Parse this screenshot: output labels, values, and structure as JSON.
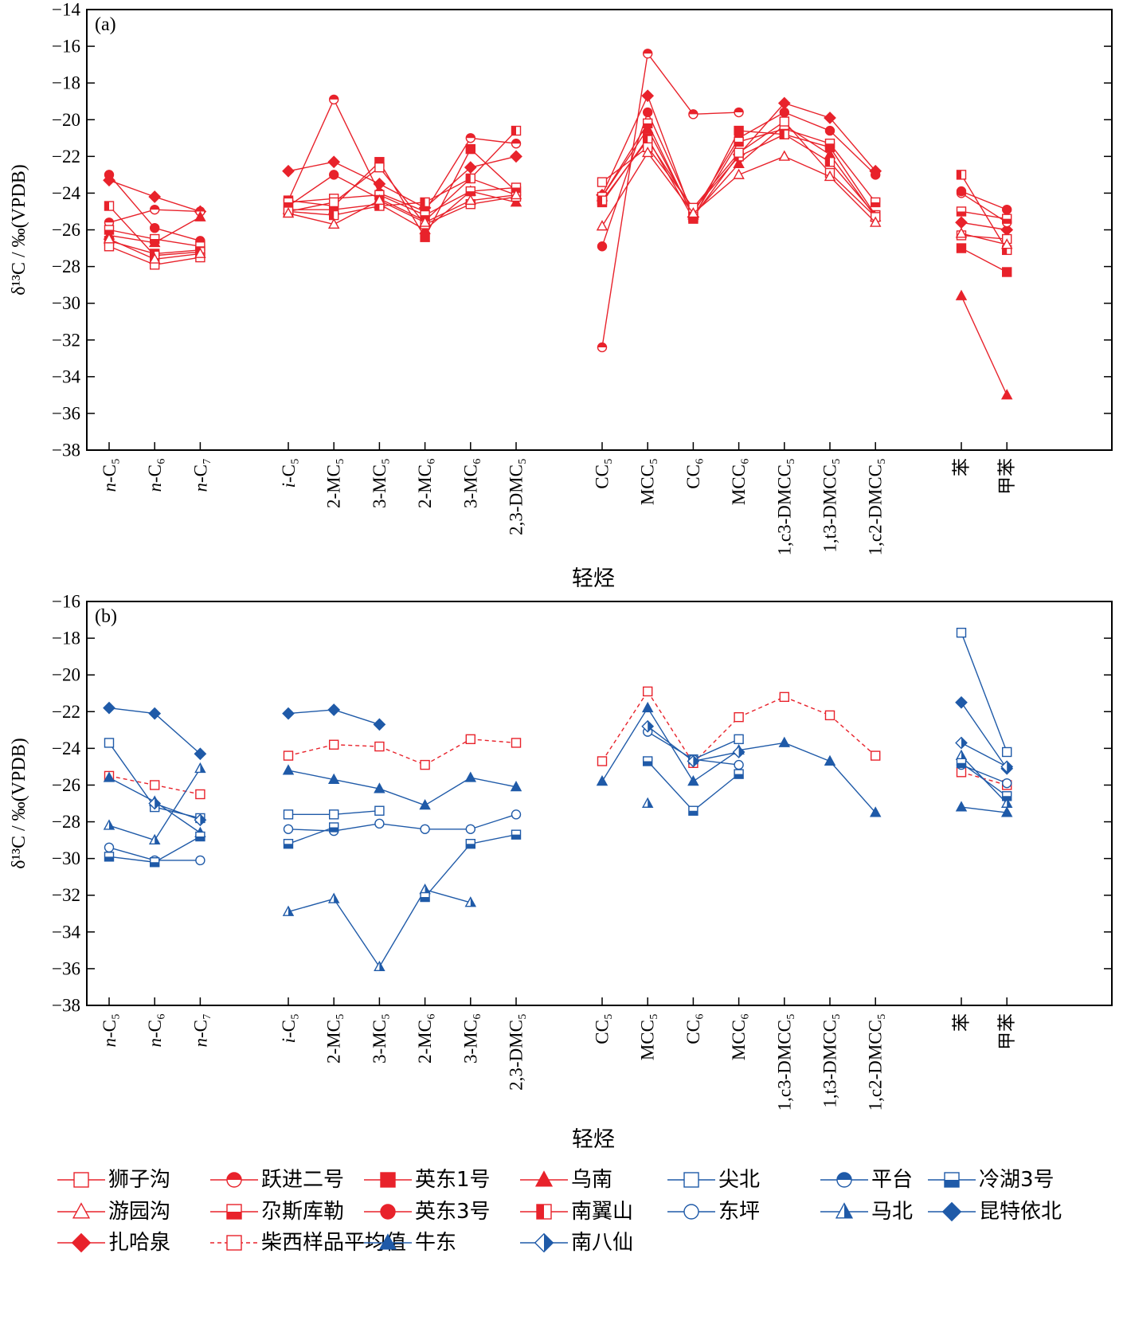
{
  "chart_data": [
    {
      "type": "line",
      "panel_label": "(a)",
      "ylabel": "δ¹³C / ‰(VPDB)",
      "xlabel": "轻烃",
      "ylim": [
        -38,
        -14
      ],
      "yticks": [
        -14,
        -16,
        -18,
        -20,
        -22,
        -24,
        -26,
        -28,
        -30,
        -32,
        -34,
        -36,
        -38
      ],
      "categories": [
        "n-C5",
        "n-C6",
        "n-C7",
        "i-C5",
        "2-MC5",
        "3-MC5",
        "2-MC6",
        "3-MC6",
        "2,3-DMC5",
        "CC5",
        "MCC5",
        "CC6",
        "MCC6",
        "1,c3-DMCC5",
        "1,t3-DMCC5",
        "1,c2-DMCC5",
        "苯",
        "甲苯"
      ],
      "category_labels": [
        "n-C₅",
        "n-C₆",
        "n-C₇",
        "i-C₅",
        "2-MC₅",
        "3-MC₅",
        "2-MC₆",
        "3-MC₆",
        "2,3-DMC₅",
        "CC₅",
        "MCC₅",
        "CC₆",
        "MCC₆",
        "1,c3-DMCC₅",
        "1,t3-DMCC₅",
        "1,c2-DMCC₅",
        "苯",
        "甲苯"
      ],
      "groups": [
        [
          0,
          1,
          2
        ],
        [
          3,
          4,
          5,
          6,
          7,
          8
        ],
        [
          9,
          10,
          11,
          12,
          13,
          14,
          15
        ],
        [
          16,
          17
        ]
      ],
      "series": [
        {
          "name": "扎哈泉",
          "marker": "diamond",
          "fill": "full",
          "values": [
            -23.3,
            -24.2,
            -25.0,
            -22.8,
            -22.3,
            -23.5,
            -24.8,
            -22.6,
            -22.0,
            -24.1,
            -18.7,
            -25.3,
            -21.9,
            -19.1,
            -19.9,
            -22.8,
            -25.6,
            -26.0
          ]
        },
        {
          "name": "跃进二号",
          "marker": "circle",
          "fill": "top",
          "values": [
            -25.6,
            -24.9,
            -25.0,
            -24.4,
            -18.9,
            -24.0,
            -25.0,
            -21.0,
            -21.3,
            -32.4,
            -16.4,
            -19.7,
            -19.6,
            null,
            null,
            null,
            -24.0,
            -25.6
          ]
        },
        {
          "name": "英东3号",
          "marker": "circle",
          "fill": "full",
          "values": [
            -23.0,
            -25.9,
            -26.6,
            -24.7,
            -23.0,
            -24.3,
            -25.5,
            -23.2,
            -24.1,
            -26.9,
            -19.6,
            -25.1,
            -21.0,
            -19.6,
            -20.6,
            -23.0,
            -23.9,
            -24.9
          ]
        },
        {
          "name": "乌南",
          "marker": "triangle",
          "fill": "full",
          "values": [
            -26.3,
            -26.7,
            -25.3,
            -24.9,
            -24.9,
            -24.6,
            -26.0,
            -23.9,
            -24.5,
            -24.2,
            -20.5,
            -25.2,
            -22.4,
            -20.3,
            -21.9,
            -25.3,
            -29.6,
            -35.0
          ]
        },
        {
          "name": "英东1号",
          "marker": "square",
          "fill": "full",
          "values": [
            -26.6,
            -27.3,
            -27.1,
            -24.4,
            -24.7,
            -22.3,
            -26.4,
            -21.6,
            -23.9,
            -24.5,
            -21.0,
            -25.4,
            -20.6,
            -20.8,
            -21.5,
            -25.2,
            -27.0,
            -28.3
          ]
        },
        {
          "name": "尕斯库勒",
          "marker": "square",
          "fill": "bottom",
          "values": [
            -26.0,
            -26.5,
            -26.9,
            -24.5,
            -24.3,
            -24.1,
            -25.2,
            -23.9,
            -23.7,
            -24.2,
            -20.2,
            -25.3,
            -21.2,
            -20.5,
            -21.3,
            -24.5,
            -25.0,
            -25.4
          ]
        },
        {
          "name": "南翼山",
          "marker": "square",
          "fill": "left",
          "values": [
            -24.7,
            -27.4,
            -27.2,
            -25.0,
            -25.2,
            -24.7,
            -24.5,
            -23.2,
            -20.6,
            -24.4,
            -21.1,
            -24.9,
            -22.0,
            -20.8,
            -22.3,
            -25.2,
            -23.0,
            -27.1
          ]
        },
        {
          "name": "狮子沟",
          "marker": "square",
          "fill": "none",
          "values": [
            -26.9,
            -27.9,
            -27.5,
            -25.0,
            -24.5,
            -22.6,
            -25.7,
            -24.6,
            -24.2,
            -23.4,
            -21.5,
            -24.8,
            -21.8,
            -20.1,
            -22.9,
            -25.3,
            -26.3,
            -26.5
          ]
        },
        {
          "name": "游园沟",
          "marker": "triangle",
          "fill": "none",
          "values": [
            -26.5,
            -27.6,
            -27.3,
            -25.1,
            -25.7,
            -24.4,
            -25.6,
            -24.4,
            -24.1,
            -25.8,
            -21.8,
            -25.1,
            -23.0,
            -22.0,
            -23.1,
            -25.6,
            -26.2,
            -26.8
          ]
        }
      ]
    },
    {
      "type": "line",
      "panel_label": "(b)",
      "ylabel": "δ¹³C / ‰(VPDB)",
      "xlabel": "轻烃",
      "ylim": [
        -38,
        -16
      ],
      "yticks": [
        -16,
        -18,
        -20,
        -22,
        -24,
        -26,
        -28,
        -30,
        -32,
        -34,
        -36,
        -38
      ],
      "categories": [
        "n-C5",
        "n-C6",
        "n-C7",
        "i-C5",
        "2-MC5",
        "3-MC5",
        "2-MC6",
        "3-MC6",
        "2,3-DMC5",
        "CC5",
        "MCC5",
        "CC6",
        "MCC6",
        "1,c3-DMCC5",
        "1,t3-DMCC5",
        "1,c2-DMCC5",
        "苯",
        "甲苯"
      ],
      "category_labels": [
        "n-C₅",
        "n-C₆",
        "n-C₇",
        "i-C₅",
        "2-MC₅",
        "3-MC₅",
        "2-MC₆",
        "3-MC₆",
        "2,3-DMC₅",
        "CC₅",
        "MCC₅",
        "CC₆",
        "MCC₆",
        "1,c3-DMCC₅",
        "1,t3-DMCC₅",
        "1,c2-DMCC₅",
        "苯",
        "甲苯"
      ],
      "groups": [
        [
          0,
          1,
          2
        ],
        [
          3,
          4,
          5,
          6,
          7,
          8
        ],
        [
          9,
          10,
          11,
          12,
          13,
          14,
          15
        ],
        [
          16,
          17
        ]
      ],
      "series": [
        {
          "name": "柴西样品平均值",
          "marker": "square",
          "fill": "none",
          "dashed": true,
          "values": [
            -25.5,
            -26.0,
            -26.5,
            -24.4,
            -23.8,
            -23.9,
            -24.9,
            -23.5,
            -23.7,
            -24.7,
            -20.9,
            -24.8,
            -22.3,
            -21.2,
            -22.2,
            -24.4,
            -25.3,
            -26.0
          ]
        },
        {
          "name": "昆特依北",
          "marker": "diamond",
          "fill": "full",
          "values": [
            -21.8,
            -22.1,
            -24.3,
            -22.1,
            -21.9,
            -22.7,
            null,
            null,
            null,
            null,
            null,
            null,
            null,
            null,
            null,
            null,
            -21.5,
            -25.1
          ]
        },
        {
          "name": "尖北",
          "marker": "square",
          "fill": "none",
          "values": [
            -23.7,
            -27.2,
            -27.8,
            -27.6,
            -27.6,
            -27.4,
            null,
            null,
            null,
            null,
            null,
            -24.6,
            -23.5,
            null,
            null,
            null,
            -17.7,
            -24.2
          ]
        },
        {
          "name": "牛东",
          "marker": "triangle",
          "fill": "full",
          "values": [
            -25.6,
            -26.9,
            -28.6,
            -25.2,
            -25.7,
            -26.2,
            -27.1,
            -25.6,
            -26.1,
            -25.8,
            -21.8,
            -25.8,
            -24.1,
            -23.7,
            -24.7,
            -27.5,
            -27.2,
            -27.5
          ]
        },
        {
          "name": "马北",
          "marker": "triangle",
          "fill": "right",
          "values": [
            -28.2,
            -29.0,
            -25.1,
            -32.9,
            -32.2,
            -35.9,
            -31.7,
            -32.4,
            null,
            null,
            -27.0,
            null,
            null,
            null,
            null,
            null,
            -24.4,
            -27.0
          ]
        },
        {
          "name": "东坪",
          "marker": "circle",
          "fill": "none",
          "values": [
            -29.4,
            -30.1,
            -30.1,
            -28.4,
            -28.5,
            -28.1,
            -28.4,
            -28.4,
            -27.6,
            null,
            -23.1,
            -24.6,
            -24.9,
            null,
            null,
            null,
            -24.9,
            -25.9
          ]
        },
        {
          "name": "冷湖3号",
          "marker": "square",
          "fill": "bottom",
          "values": [
            -29.9,
            -30.2,
            -28.8,
            -29.2,
            -28.3,
            null,
            -32.1,
            -29.2,
            -28.7,
            null,
            -24.7,
            -27.4,
            -25.4,
            null,
            null,
            null,
            -24.8,
            -26.6
          ]
        },
        {
          "name": "南八仙",
          "marker": "diamond",
          "fill": "right",
          "values": [
            null,
            -27.0,
            -27.9,
            null,
            null,
            null,
            null,
            null,
            null,
            null,
            -22.8,
            -24.7,
            -24.2,
            null,
            null,
            null,
            -23.7,
            -25.0
          ]
        }
      ]
    }
  ],
  "colors": {
    "red": "#e8222b",
    "blue": "#1f5aa8"
  },
  "legend": [
    {
      "name": "狮子沟",
      "color": "red",
      "marker": "square",
      "fill": "none"
    },
    {
      "name": "跃进二号",
      "color": "red",
      "marker": "circle",
      "fill": "top"
    },
    {
      "name": "英东1号",
      "color": "red",
      "marker": "square",
      "fill": "full"
    },
    {
      "name": "乌南",
      "color": "red",
      "marker": "triangle",
      "fill": "full"
    },
    {
      "name": "尖北",
      "color": "blue",
      "marker": "square",
      "fill": "none"
    },
    {
      "name": "平台",
      "color": "blue",
      "marker": "circle",
      "fill": "top"
    },
    {
      "name": "冷湖3号",
      "color": "blue",
      "marker": "square",
      "fill": "bottom"
    },
    {
      "name": "游园沟",
      "color": "red",
      "marker": "triangle",
      "fill": "none"
    },
    {
      "name": "尕斯库勒",
      "color": "red",
      "marker": "square",
      "fill": "bottom"
    },
    {
      "name": "英东3号",
      "color": "red",
      "marker": "circle",
      "fill": "full"
    },
    {
      "name": "南翼山",
      "color": "red",
      "marker": "square",
      "fill": "left"
    },
    {
      "name": "东坪",
      "color": "blue",
      "marker": "circle",
      "fill": "none"
    },
    {
      "name": "马北",
      "color": "blue",
      "marker": "triangle",
      "fill": "right"
    },
    {
      "name": "昆特依北",
      "color": "blue",
      "marker": "diamond",
      "fill": "full"
    },
    {
      "name": "扎哈泉",
      "color": "red",
      "marker": "diamond",
      "fill": "full"
    },
    {
      "name": "柴西样品平均值",
      "color": "red",
      "marker": "square",
      "fill": "none",
      "dashed": true
    },
    {
      "name": "牛东",
      "color": "blue",
      "marker": "triangle",
      "fill": "full"
    },
    {
      "name": "南八仙",
      "color": "blue",
      "marker": "diamond",
      "fill": "right"
    }
  ]
}
